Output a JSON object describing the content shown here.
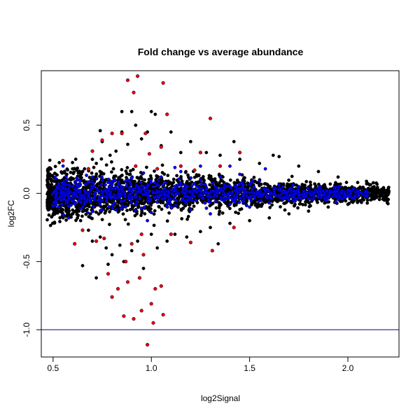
{
  "chart_data": {
    "type": "scatter",
    "title": "Fold change vs average abundance",
    "xlabel": "log2Signal",
    "ylabel": "log2FC",
    "xlim": [
      0.44,
      2.26
    ],
    "ylim": [
      -1.2,
      0.9
    ],
    "xticks": [
      0.5,
      1.0,
      1.5,
      2.0
    ],
    "xtick_labels": [
      "0.5",
      "1.0",
      "1.5",
      "2.0"
    ],
    "yticks": [
      -1.0,
      -0.5,
      0.0,
      0.5
    ],
    "ytick_labels": [
      "-1.0",
      "-0.5",
      "0.0",
      "0.5"
    ],
    "hline": -1.0,
    "grid": false,
    "legend": "none",
    "colors": {
      "all": "#000000",
      "blue": "#0000ff",
      "red": "#e0001a",
      "hline": "#000080"
    },
    "series": [
      {
        "color": "#000000",
        "points": [
          [
            0.48,
            0.05
          ],
          [
            0.5,
            -0.04
          ],
          [
            0.52,
            0.09
          ],
          [
            0.55,
            -0.12
          ],
          [
            0.57,
            0.14
          ],
          [
            0.6,
            -0.15
          ],
          [
            0.62,
            0.17
          ],
          [
            0.64,
            -0.2
          ],
          [
            0.66,
            0.18
          ],
          [
            0.68,
            -0.27
          ],
          [
            0.7,
            0.25
          ],
          [
            0.7,
            -0.35
          ],
          [
            0.72,
            0.22
          ],
          [
            0.74,
            -0.32
          ],
          [
            0.75,
            0.38
          ],
          [
            0.77,
            -0.4
          ],
          [
            0.79,
            0.28
          ],
          [
            0.8,
            -0.45
          ],
          [
            0.82,
            0.31
          ],
          [
            0.84,
            -0.38
          ],
          [
            0.85,
            0.45
          ],
          [
            0.86,
            -0.5
          ],
          [
            0.88,
            0.36
          ],
          [
            0.9,
            -0.42
          ],
          [
            0.92,
            0.5
          ],
          [
            0.93,
            -0.35
          ],
          [
            0.95,
            0.4
          ],
          [
            0.96,
            -0.55
          ],
          [
            0.98,
            0.45
          ],
          [
            1.0,
            -0.3
          ],
          [
            1.02,
            0.58
          ],
          [
            1.03,
            -0.4
          ],
          [
            1.05,
            0.35
          ],
          [
            1.08,
            -0.35
          ],
          [
            1.1,
            0.45
          ],
          [
            1.12,
            -0.3
          ],
          [
            1.15,
            0.3
          ],
          [
            1.18,
            -0.32
          ],
          [
            1.2,
            0.38
          ],
          [
            1.25,
            -0.28
          ],
          [
            1.28,
            0.3
          ],
          [
            1.3,
            -0.25
          ],
          [
            1.35,
            0.28
          ],
          [
            1.4,
            -0.22
          ],
          [
            1.45,
            0.25
          ],
          [
            1.5,
            -0.2
          ],
          [
            1.55,
            0.22
          ],
          [
            1.6,
            -0.18
          ],
          [
            1.65,
            0.27
          ],
          [
            1.7,
            -0.15
          ],
          [
            1.75,
            0.2
          ],
          [
            1.8,
            -0.13
          ],
          [
            1.85,
            0.16
          ],
          [
            1.9,
            -0.1
          ],
          [
            1.95,
            0.12
          ],
          [
            2.0,
            -0.08
          ],
          [
            2.05,
            0.08
          ],
          [
            2.1,
            -0.05
          ],
          [
            2.15,
            0.04
          ],
          [
            2.2,
            0.01
          ],
          [
            0.72,
            -0.62
          ],
          [
            0.78,
            -0.52
          ],
          [
            0.85,
            0.6
          ],
          [
            0.65,
            -0.53
          ],
          [
            1.0,
            0.6
          ],
          [
            0.74,
            0.46
          ],
          [
            0.9,
            0.6
          ],
          [
            1.42,
            0.38
          ],
          [
            1.62,
            0.28
          ],
          [
            1.34,
            -0.37
          ]
        ]
      },
      {
        "color": "#0000ff",
        "points": [
          [
            0.55,
            0.04
          ],
          [
            0.58,
            -0.18
          ],
          [
            0.62,
            0.06
          ],
          [
            0.65,
            -0.1
          ],
          [
            0.7,
            0.12
          ],
          [
            0.73,
            -0.05
          ],
          [
            0.78,
            0.08
          ],
          [
            0.82,
            -0.12
          ],
          [
            0.88,
            0.1
          ],
          [
            0.92,
            -0.08
          ],
          [
            0.96,
            0.15
          ],
          [
            1.0,
            -0.14
          ],
          [
            1.05,
            0.12
          ],
          [
            1.1,
            -0.1
          ],
          [
            1.15,
            0.16
          ],
          [
            1.2,
            -0.12
          ],
          [
            1.25,
            0.1
          ],
          [
            1.3,
            -0.15
          ],
          [
            1.35,
            0.12
          ],
          [
            1.4,
            -0.08
          ],
          [
            1.45,
            0.14
          ],
          [
            1.5,
            -0.1
          ],
          [
            1.55,
            0.09
          ],
          [
            1.6,
            -0.07
          ],
          [
            1.65,
            0.06
          ],
          [
            1.7,
            -0.05
          ],
          [
            1.75,
            0.05
          ],
          [
            1.8,
            -0.04
          ],
          [
            1.85,
            0.04
          ],
          [
            1.9,
            -0.03
          ],
          [
            1.95,
            0.03
          ],
          [
            2.0,
            -0.02
          ],
          [
            2.05,
            0.02
          ],
          [
            1.58,
            0.18
          ],
          [
            1.25,
            0.2
          ],
          [
            0.98,
            -0.2
          ],
          [
            1.12,
            0.19
          ],
          [
            1.4,
            0.2
          ]
        ]
      },
      {
        "color": "#e0001a",
        "points": [
          [
            0.55,
            0.24
          ],
          [
            0.61,
            -0.37
          ],
          [
            0.65,
            -0.27
          ],
          [
            0.68,
            0.18
          ],
          [
            0.7,
            0.31
          ],
          [
            0.72,
            -0.35
          ],
          [
            0.75,
            0.39
          ],
          [
            0.76,
            -0.33
          ],
          [
            0.78,
            -0.59
          ],
          [
            0.8,
            -0.76
          ],
          [
            0.8,
            0.44
          ],
          [
            0.83,
            -0.7
          ],
          [
            0.85,
            0.44
          ],
          [
            0.86,
            -0.9
          ],
          [
            0.87,
            -0.5
          ],
          [
            0.88,
            0.83
          ],
          [
            0.88,
            -0.65
          ],
          [
            0.9,
            -0.37
          ],
          [
            0.91,
            0.74
          ],
          [
            0.92,
            0.2
          ],
          [
            0.93,
            0.86
          ],
          [
            0.94,
            -0.62
          ],
          [
            0.95,
            -0.3
          ],
          [
            0.95,
            -0.86
          ],
          [
            0.96,
            -0.45
          ],
          [
            0.97,
            0.44
          ],
          [
            0.98,
            -1.11
          ],
          [
            0.99,
            0.29
          ],
          [
            1.0,
            -0.81
          ],
          [
            1.01,
            -0.95
          ],
          [
            1.02,
            -0.7
          ],
          [
            1.03,
            0.18
          ],
          [
            1.05,
            0.34
          ],
          [
            1.06,
            0.81
          ],
          [
            1.06,
            -0.89
          ],
          [
            1.08,
            0.58
          ],
          [
            1.1,
            -0.3
          ],
          [
            1.15,
            0.2
          ],
          [
            1.2,
            -0.36
          ],
          [
            1.22,
            0.17
          ],
          [
            1.25,
            0.3
          ],
          [
            1.3,
            0.55
          ],
          [
            1.31,
            -0.42
          ],
          [
            1.35,
            0.2
          ],
          [
            1.42,
            -0.25
          ],
          [
            1.45,
            0.3
          ],
          [
            1.05,
            -0.68
          ],
          [
            0.91,
            -0.92
          ]
        ]
      }
    ]
  }
}
